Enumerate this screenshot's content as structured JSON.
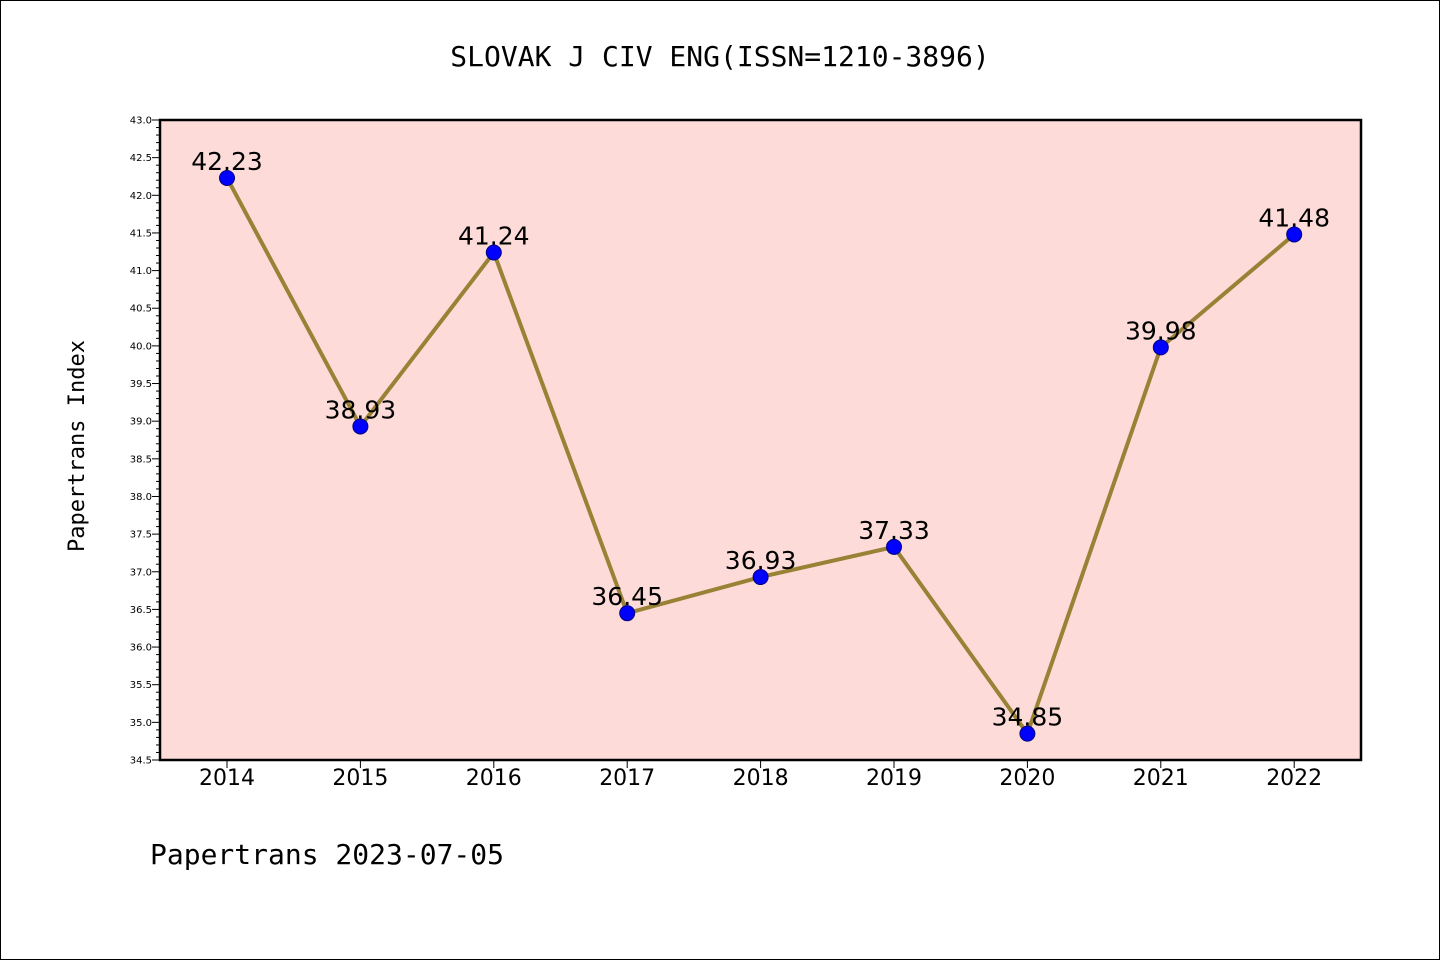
{
  "chart_data": {
    "type": "line",
    "title": "SLOVAK J CIV ENG(ISSN=1210-3896)",
    "ylabel": "Papertrans Index",
    "xlabel": "",
    "footer": "Papertrans 2023-07-05",
    "categories": [
      "2014",
      "2015",
      "2016",
      "2017",
      "2018",
      "2019",
      "2020",
      "2021",
      "2022"
    ],
    "series": [
      {
        "values": [
          42.23,
          38.93,
          41.24,
          36.45,
          36.93,
          37.33,
          34.85,
          39.98,
          41.48
        ],
        "labels": [
          "42.23",
          "38.93",
          "41.24",
          "36.45",
          "36.93",
          "37.33",
          "34.85",
          "39.98",
          "41.48"
        ]
      }
    ],
    "ylim": [
      34.5,
      43.0
    ],
    "yticks": [
      "34.5",
      "35.0",
      "35.5",
      "36.0",
      "36.5",
      "37.0",
      "37.5",
      "38.0",
      "38.5",
      "39.0",
      "39.5",
      "40.0",
      "40.5",
      "41.0",
      "41.5",
      "42.0",
      "42.5",
      "43.0"
    ],
    "grid": false,
    "colors": {
      "plot_background": "#fddbd9",
      "line": "#998236",
      "marker": "#0000ff",
      "marker_edge": "#000080"
    }
  }
}
